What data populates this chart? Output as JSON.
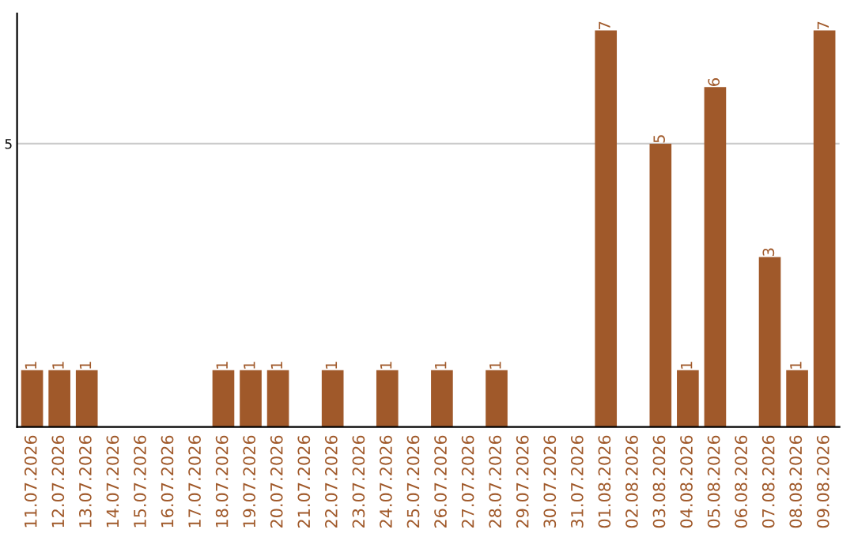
{
  "chart_data": {
    "type": "bar",
    "categories": [
      "11.07.2026",
      "12.07.2026",
      "13.07.2026",
      "14.07.2026",
      "15.07.2026",
      "16.07.2026",
      "17.07.2026",
      "18.07.2026",
      "19.07.2026",
      "20.07.2026",
      "21.07.2026",
      "22.07.2026",
      "23.07.2026",
      "24.07.2026",
      "25.07.2026",
      "26.07.2026",
      "27.07.2026",
      "28.07.2026",
      "29.07.2026",
      "30.07.2026",
      "31.07.2026",
      "01.08.2026",
      "02.08.2026",
      "03.08.2026",
      "04.08.2026",
      "05.08.2026",
      "06.08.2026",
      "07.08.2026",
      "08.08.2026",
      "09.08.2026"
    ],
    "values": [
      1,
      1,
      1,
      0,
      0,
      0,
      0,
      1,
      1,
      1,
      0,
      1,
      0,
      1,
      0,
      1,
      0,
      1,
      0,
      0,
      0,
      7,
      0,
      5,
      1,
      6,
      0,
      3,
      1,
      7
    ],
    "value_labels": [
      "1",
      "1",
      "1",
      null,
      null,
      null,
      null,
      "1",
      "1",
      "1",
      null,
      "1",
      null,
      "1",
      null,
      "1",
      null,
      "1",
      null,
      null,
      null,
      "7",
      null,
      "5",
      "1",
      "6",
      null,
      "3",
      "1",
      "7"
    ],
    "color": "#a0592a",
    "ylim": [
      0,
      7.3
    ],
    "yticks": [
      5
    ],
    "grid": "y"
  }
}
